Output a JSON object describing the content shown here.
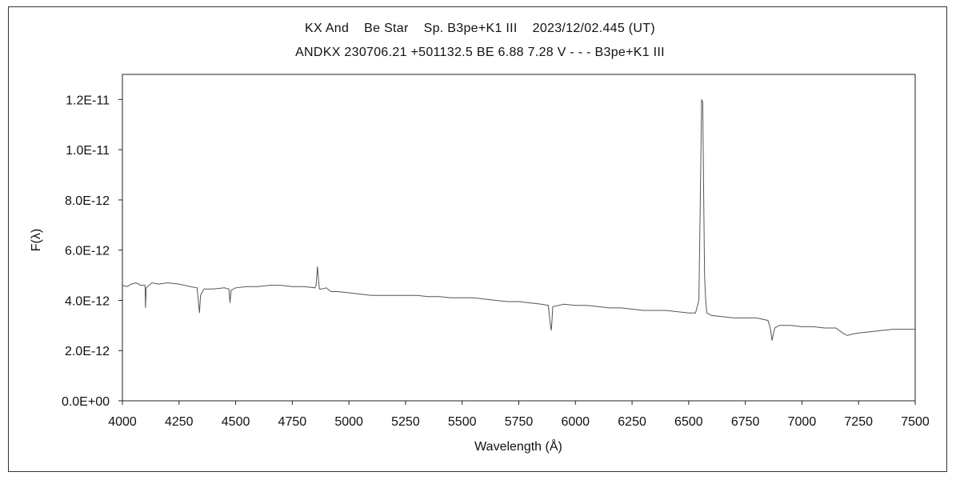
{
  "chart_data": {
    "type": "line",
    "title": "KX And    Be Star    Sp. B3pe+K1 III    2023/12/02.445 (UT)",
    "subtitle": "ANDKX 230706.21 +501132.5 BE 6.88 7.28 V - - - B3pe+K1 III",
    "xlabel": "Wavelength (Å)",
    "ylabel": "F(λ)",
    "xlim": [
      4000,
      7500
    ],
    "ylim": [
      0,
      1.3e-11
    ],
    "x_ticks": [
      4000,
      4250,
      4500,
      4750,
      5000,
      5250,
      5500,
      5750,
      6000,
      6250,
      6500,
      6750,
      7000,
      7250,
      7500
    ],
    "x_tick_labels": [
      "4000",
      "4250",
      "4500",
      "4750",
      "5000",
      "5250",
      "5500",
      "5750",
      "6000",
      "6250",
      "6500",
      "6750",
      "7000",
      "7250",
      "7500"
    ],
    "y_ticks": [
      0,
      2e-12,
      4e-12,
      6e-12,
      8e-12,
      1e-11,
      1.2e-11
    ],
    "y_tick_labels": [
      "0.0E+00",
      "2.0E-12",
      "4.0E-12",
      "6.0E-12",
      "8.0E-12",
      "1.0E-11",
      "1.2E-11"
    ],
    "grid": false,
    "line_color": "#555555",
    "series": [
      {
        "x": [
          4000,
          4020,
          4040,
          4060,
          4080,
          4100,
          4102,
          4105,
          4130,
          4160,
          4200,
          4250,
          4300,
          4330,
          4340,
          4345,
          4360,
          4400,
          4450,
          4470,
          4475,
          4480,
          4500,
          4550,
          4600,
          4650,
          4700,
          4750,
          4800,
          4850,
          4855,
          4861,
          4866,
          4870,
          4880,
          4900,
          4920,
          4950,
          5000,
          5050,
          5100,
          5150,
          5200,
          5250,
          5300,
          5350,
          5400,
          5450,
          5500,
          5550,
          5600,
          5650,
          5700,
          5750,
          5800,
          5850,
          5880,
          5890,
          5893,
          5896,
          5900,
          5950,
          6000,
          6050,
          6100,
          6150,
          6200,
          6250,
          6300,
          6350,
          6400,
          6450,
          6500,
          6530,
          6545,
          6552,
          6557,
          6562,
          6566,
          6570,
          6575,
          6580,
          6600,
          6650,
          6700,
          6750,
          6800,
          6850,
          6860,
          6868,
          6872,
          6880,
          6900,
          6950,
          7000,
          7050,
          7100,
          7150,
          7180,
          7200,
          7220,
          7250,
          7300,
          7350,
          7400,
          7450,
          7500
        ],
        "values": [
          4.6e-12,
          4.55e-12,
          4.65e-12,
          4.7e-12,
          4.6e-12,
          4.6e-12,
          3.7e-12,
          4.5e-12,
          4.7e-12,
          4.65e-12,
          4.7e-12,
          4.65e-12,
          4.55e-12,
          4.5e-12,
          3.5e-12,
          4.2e-12,
          4.45e-12,
          4.45e-12,
          4.5e-12,
          4.45e-12,
          3.9e-12,
          4.4e-12,
          4.5e-12,
          4.55e-12,
          4.55e-12,
          4.6e-12,
          4.6e-12,
          4.55e-12,
          4.55e-12,
          4.5e-12,
          4.6e-12,
          5.35e-12,
          4.8e-12,
          4.45e-12,
          4.45e-12,
          4.5e-12,
          4.35e-12,
          4.35e-12,
          4.3e-12,
          4.25e-12,
          4.2e-12,
          4.2e-12,
          4.2e-12,
          4.2e-12,
          4.2e-12,
          4.15e-12,
          4.15e-12,
          4.1e-12,
          4.1e-12,
          4.1e-12,
          4.05e-12,
          4e-12,
          3.95e-12,
          3.95e-12,
          3.9e-12,
          3.85e-12,
          3.8e-12,
          3e-12,
          2.8e-12,
          3.1e-12,
          3.75e-12,
          3.85e-12,
          3.8e-12,
          3.8e-12,
          3.75e-12,
          3.7e-12,
          3.7e-12,
          3.65e-12,
          3.6e-12,
          3.6e-12,
          3.6e-12,
          3.55e-12,
          3.5e-12,
          3.5e-12,
          4e-12,
          8.5e-12,
          1.2e-11,
          1.19e-11,
          8.5e-12,
          5e-12,
          4e-12,
          3.5e-12,
          3.4e-12,
          3.35e-12,
          3.3e-12,
          3.3e-12,
          3.3e-12,
          3.2e-12,
          2.9e-12,
          2.4e-12,
          2.6e-12,
          2.9e-12,
          3e-12,
          3e-12,
          2.95e-12,
          2.95e-12,
          2.9e-12,
          2.9e-12,
          2.7e-12,
          2.6e-12,
          2.65e-12,
          2.7e-12,
          2.75e-12,
          2.8e-12,
          2.85e-12,
          2.85e-12,
          2.85e-12
        ]
      }
    ]
  }
}
